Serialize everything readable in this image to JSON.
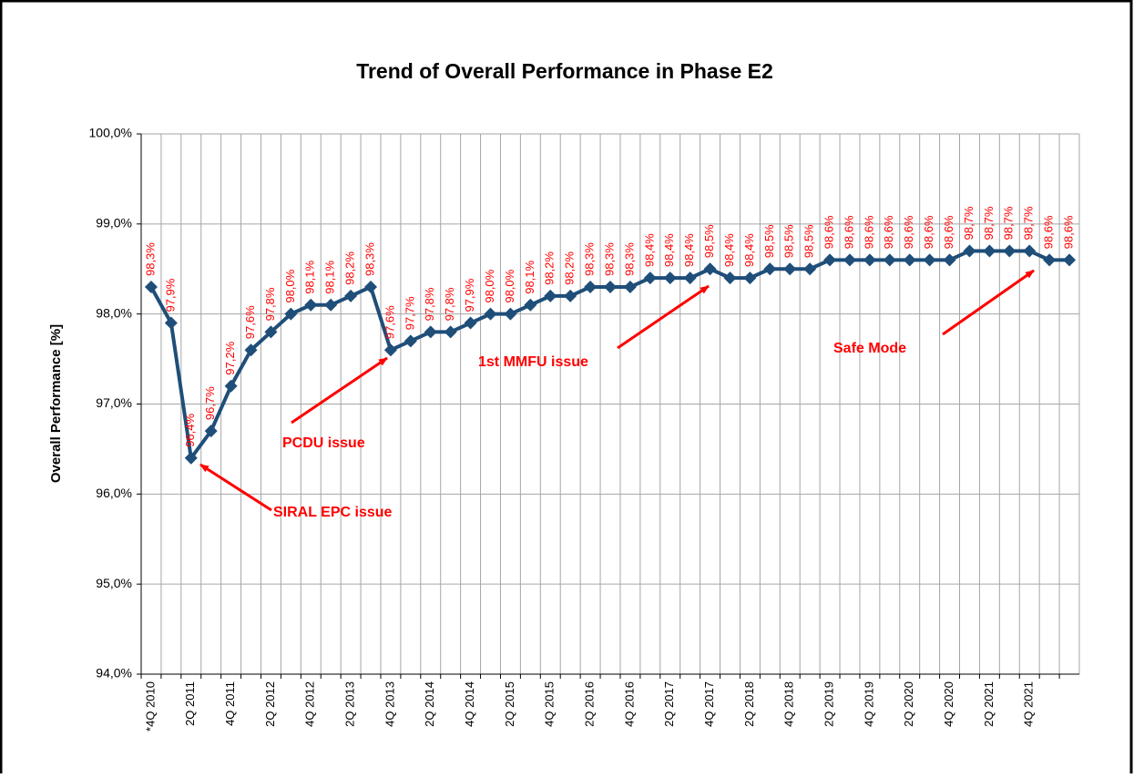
{
  "chart_data": {
    "type": "line",
    "title": "Trend of Overall Performance in Phase E2",
    "y_label": "Overall Performance [%]",
    "categories": [
      "*4Q 2010",
      null,
      "2Q 2011",
      null,
      "4Q 2011",
      null,
      "2Q 2012",
      null,
      "4Q 2012",
      null,
      "2Q 2013",
      null,
      "4Q 2013",
      null,
      "2Q 2014",
      null,
      "4Q 2014",
      null,
      "2Q 2015",
      null,
      "4Q 2015",
      null,
      "2Q 2016",
      null,
      "4Q 2016",
      null,
      "2Q 2017",
      null,
      "4Q 2017",
      null,
      "2Q 2018",
      null,
      "4Q 2018",
      null,
      "2Q 2019",
      null,
      "4Q 2019",
      null,
      "2Q 2020",
      null,
      "4Q 2020",
      null,
      "2Q 2021",
      null,
      "4Q 2021",
      null,
      null
    ],
    "series": [
      {
        "name": "Overall Performance",
        "color": "#1f4e79",
        "values": [
          98.3,
          97.9,
          96.4,
          96.7,
          97.2,
          97.6,
          97.8,
          98.0,
          98.1,
          98.1,
          98.2,
          98.3,
          97.6,
          97.7,
          97.8,
          97.8,
          97.9,
          98.0,
          98.0,
          98.1,
          98.2,
          98.2,
          98.3,
          98.3,
          98.3,
          98.4,
          98.4,
          98.4,
          98.5,
          98.4,
          98.4,
          98.5,
          98.5,
          98.5,
          98.6,
          98.6,
          98.6,
          98.6,
          98.6,
          98.6,
          98.6,
          98.7,
          98.7,
          98.7,
          98.7,
          98.6,
          98.6
        ],
        "value_labels": [
          "98,3%",
          "97,9%",
          "96,4%",
          "96,7%",
          "97,2%",
          "97,6%",
          "97,8%",
          "98,0%",
          "98,1%",
          "98,1%",
          "98,2%",
          "98,3%",
          "97,6%",
          "97,7%",
          "97,8%",
          "97,8%",
          "97,9%",
          "98,0%",
          "98,0%",
          "98,1%",
          "98,2%",
          "98,2%",
          "98,3%",
          "98,3%",
          "98,3%",
          "98,4%",
          "98,4%",
          "98,4%",
          "98,5%",
          "98,4%",
          "98,4%",
          "98,5%",
          "98,5%",
          "98,5%",
          "98,6%",
          "98,6%",
          "98,6%",
          "98,6%",
          "98,6%",
          "98,6%",
          "98,6%",
          "98,7%",
          "98,7%",
          "98,7%",
          "98,7%",
          "98,6%",
          "98,6%"
        ],
        "value_label_color": "#ff0000"
      }
    ],
    "ylim": [
      94,
      100
    ],
    "yticks": [
      {
        "value": 94,
        "label": "94,0%"
      },
      {
        "value": 95,
        "label": "95,0%"
      },
      {
        "value": 96,
        "label": "96,0%"
      },
      {
        "value": 97,
        "label": "97,0%"
      },
      {
        "value": 98,
        "label": "98,0%"
      },
      {
        "value": 99,
        "label": "99,0%"
      },
      {
        "value": 100,
        "label": "100,0%"
      }
    ],
    "grid": true,
    "annotations": [
      "SIRAL EPC issue",
      "PCDU issue",
      "1st MMFU issue",
      "Safe Mode"
    ],
    "annotation_color": "#ff0000"
  }
}
